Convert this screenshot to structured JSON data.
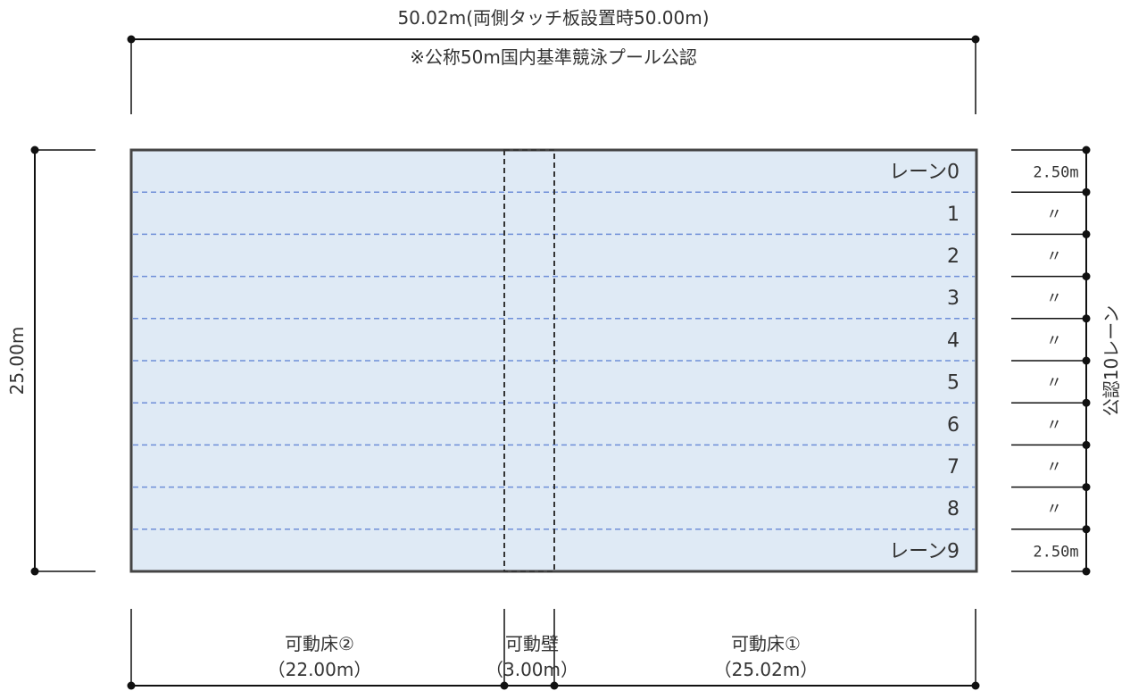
{
  "top_dimension": {
    "total_length": "50.02m(両側タッチ板設置時50.00m)",
    "certification": "※公称50m国内基準競泳プール公認"
  },
  "width_dimension": "25.00m",
  "lanes": {
    "labels": [
      "レーン0",
      "1",
      "2",
      "3",
      "4",
      "5",
      "6",
      "7",
      "8",
      "レーン9"
    ],
    "widths": [
      "2.50m",
      "〃",
      "〃",
      "〃",
      "〃",
      "〃",
      "〃",
      "〃",
      "〃",
      "2.50m"
    ],
    "certified_lanes": "公認10レーン"
  },
  "sections": [
    {
      "name": "可動床②",
      "length": "（22.00m）"
    },
    {
      "name": "可動壁",
      "length": "（3.00m）"
    },
    {
      "name": "可動床①",
      "length": "（25.02m）"
    }
  ],
  "colors": {
    "water": "#dfeaf5",
    "lane_line": "#6f8fd8",
    "outline": "#444444",
    "dim_line": "#111111"
  }
}
